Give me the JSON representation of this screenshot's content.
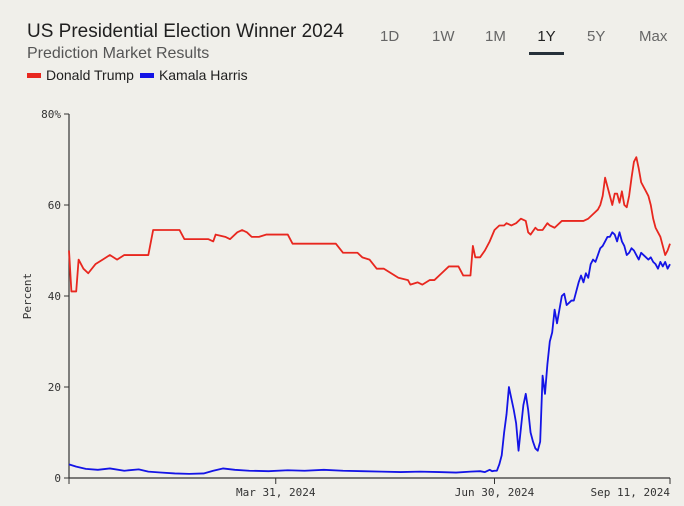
{
  "header": {
    "title": "US Presidential Election Winner 2024",
    "subtitle": "Prediction Market Results"
  },
  "range_tabs": [
    {
      "label": "1D",
      "active": false
    },
    {
      "label": "1W",
      "active": false
    },
    {
      "label": "1M",
      "active": false
    },
    {
      "label": "1Y",
      "active": true
    },
    {
      "label": "5Y",
      "active": false
    },
    {
      "label": "Max",
      "active": false
    }
  ],
  "colors": {
    "trump": "#e8271f",
    "harris": "#1414e6",
    "axis": "#333333",
    "active_tab": "#27313a"
  },
  "chart_data": {
    "type": "line",
    "title": "US Presidential Election Winner 2024",
    "subtitle": "Prediction Market Results",
    "ylabel": "Percent",
    "xlabel": "",
    "ylim": [
      0,
      80
    ],
    "y_ticks": [
      0,
      20,
      40,
      60
    ],
    "y_top_label": "80%",
    "x_ticks": [
      {
        "date": "2024-03-31",
        "label": "Mar 31, 2024"
      },
      {
        "date": "2024-06-30",
        "label": "Jun 30, 2024"
      },
      {
        "date": "2024-09-11",
        "label": "Sep 11, 2024"
      }
    ],
    "x_range": [
      "2024-01-05",
      "2024-09-11"
    ],
    "grid": false,
    "legend": "top-left",
    "series": [
      {
        "name": "Donald Trump",
        "color": "#e8271f",
        "points": [
          [
            "2024-01-05",
            50
          ],
          [
            "2024-01-06",
            41
          ],
          [
            "2024-01-08",
            41
          ],
          [
            "2024-01-09",
            48
          ],
          [
            "2024-01-11",
            46
          ],
          [
            "2024-01-13",
            45
          ],
          [
            "2024-01-16",
            47
          ],
          [
            "2024-01-19",
            48
          ],
          [
            "2024-01-22",
            49
          ],
          [
            "2024-01-25",
            48
          ],
          [
            "2024-01-28",
            49
          ],
          [
            "2024-02-03",
            49
          ],
          [
            "2024-02-07",
            49
          ],
          [
            "2024-02-09",
            54.5
          ],
          [
            "2024-02-17",
            54.5
          ],
          [
            "2024-02-20",
            54.5
          ],
          [
            "2024-02-22",
            52.5
          ],
          [
            "2024-02-28",
            52.5
          ],
          [
            "2024-03-03",
            52.5
          ],
          [
            "2024-03-05",
            52
          ],
          [
            "2024-03-06",
            53.5
          ],
          [
            "2024-03-10",
            53
          ],
          [
            "2024-03-12",
            52.5
          ],
          [
            "2024-03-15",
            54
          ],
          [
            "2024-03-17",
            54.5
          ],
          [
            "2024-03-19",
            54
          ],
          [
            "2024-03-21",
            53
          ],
          [
            "2024-03-24",
            53
          ],
          [
            "2024-03-27",
            53.5
          ],
          [
            "2024-04-01",
            53.5
          ],
          [
            "2024-04-05",
            53.5
          ],
          [
            "2024-04-07",
            51.5
          ],
          [
            "2024-04-15",
            51.5
          ],
          [
            "2024-04-25",
            51.5
          ],
          [
            "2024-04-28",
            49.5
          ],
          [
            "2024-05-04",
            49.5
          ],
          [
            "2024-05-06",
            48.5
          ],
          [
            "2024-05-09",
            48
          ],
          [
            "2024-05-12",
            46
          ],
          [
            "2024-05-15",
            46
          ],
          [
            "2024-05-18",
            45
          ],
          [
            "2024-05-21",
            44
          ],
          [
            "2024-05-25",
            43.5
          ],
          [
            "2024-05-26",
            42.5
          ],
          [
            "2024-05-29",
            43
          ],
          [
            "2024-05-31",
            42.5
          ],
          [
            "2024-06-03",
            43.5
          ],
          [
            "2024-06-05",
            43.5
          ],
          [
            "2024-06-08",
            45
          ],
          [
            "2024-06-11",
            46.5
          ],
          [
            "2024-06-15",
            46.5
          ],
          [
            "2024-06-17",
            44.5
          ],
          [
            "2024-06-20",
            44.5
          ],
          [
            "2024-06-21",
            51
          ],
          [
            "2024-06-22",
            48.5
          ],
          [
            "2024-06-24",
            48.5
          ],
          [
            "2024-06-26",
            50
          ],
          [
            "2024-06-28",
            52
          ],
          [
            "2024-06-30",
            54.5
          ],
          [
            "2024-07-02",
            55.5
          ],
          [
            "2024-07-04",
            55.5
          ],
          [
            "2024-07-05",
            56
          ],
          [
            "2024-07-07",
            55.5
          ],
          [
            "2024-07-09",
            56
          ],
          [
            "2024-07-11",
            57
          ],
          [
            "2024-07-13",
            56.5
          ],
          [
            "2024-07-14",
            54
          ],
          [
            "2024-07-15",
            53.5
          ],
          [
            "2024-07-17",
            55
          ],
          [
            "2024-07-18",
            54.5
          ],
          [
            "2024-07-20",
            54.5
          ],
          [
            "2024-07-22",
            56
          ],
          [
            "2024-07-23",
            55.5
          ],
          [
            "2024-07-25",
            55
          ],
          [
            "2024-07-28",
            56.5
          ],
          [
            "2024-08-02",
            56.5
          ],
          [
            "2024-08-06",
            56.5
          ],
          [
            "2024-08-08",
            57
          ],
          [
            "2024-08-10",
            58
          ],
          [
            "2024-08-12",
            59
          ],
          [
            "2024-08-13",
            60
          ],
          [
            "2024-08-14",
            62
          ],
          [
            "2024-08-15",
            66
          ],
          [
            "2024-08-16",
            64
          ],
          [
            "2024-08-17",
            62
          ],
          [
            "2024-08-18",
            60
          ],
          [
            "2024-08-19",
            62.5
          ],
          [
            "2024-08-20",
            62.5
          ],
          [
            "2024-08-21",
            60.5
          ],
          [
            "2024-08-22",
            63
          ],
          [
            "2024-08-23",
            60
          ],
          [
            "2024-08-24",
            59.5
          ],
          [
            "2024-08-25",
            62
          ],
          [
            "2024-08-26",
            66
          ],
          [
            "2024-08-27",
            69.5
          ],
          [
            "2024-08-28",
            70.5
          ],
          [
            "2024-08-29",
            68
          ],
          [
            "2024-08-30",
            65
          ],
          [
            "2024-08-31",
            64
          ],
          [
            "2024-09-01",
            63
          ],
          [
            "2024-09-02",
            62
          ],
          [
            "2024-09-03",
            60
          ],
          [
            "2024-09-04",
            57
          ],
          [
            "2024-09-05",
            55
          ],
          [
            "2024-09-06",
            54
          ],
          [
            "2024-09-07",
            53
          ],
          [
            "2024-09-08",
            51
          ],
          [
            "2024-09-09",
            49
          ],
          [
            "2024-09-10",
            50
          ],
          [
            "2024-09-11",
            51.5
          ]
        ]
      },
      {
        "name": "Kamala Harris",
        "color": "#1414e6",
        "points": [
          [
            "2024-01-05",
            3
          ],
          [
            "2024-01-08",
            2.5
          ],
          [
            "2024-01-12",
            2
          ],
          [
            "2024-01-17",
            1.8
          ],
          [
            "2024-01-22",
            2.1
          ],
          [
            "2024-01-28",
            1.6
          ],
          [
            "2024-02-03",
            1.9
          ],
          [
            "2024-02-07",
            1.4
          ],
          [
            "2024-02-12",
            1.2
          ],
          [
            "2024-02-18",
            1
          ],
          [
            "2024-02-24",
            0.9
          ],
          [
            "2024-03-01",
            1
          ],
          [
            "2024-03-05",
            1.6
          ],
          [
            "2024-03-09",
            2.1
          ],
          [
            "2024-03-14",
            1.8
          ],
          [
            "2024-03-20",
            1.6
          ],
          [
            "2024-03-28",
            1.5
          ],
          [
            "2024-04-05",
            1.7
          ],
          [
            "2024-04-12",
            1.6
          ],
          [
            "2024-04-20",
            1.8
          ],
          [
            "2024-04-28",
            1.6
          ],
          [
            "2024-05-06",
            1.5
          ],
          [
            "2024-05-14",
            1.4
          ],
          [
            "2024-05-22",
            1.3
          ],
          [
            "2024-05-30",
            1.4
          ],
          [
            "2024-06-07",
            1.3
          ],
          [
            "2024-06-14",
            1.2
          ],
          [
            "2024-06-20",
            1.4
          ],
          [
            "2024-06-24",
            1.5
          ],
          [
            "2024-06-26",
            1.3
          ],
          [
            "2024-06-28",
            1.8
          ],
          [
            "2024-06-29",
            1.5
          ],
          [
            "2024-06-30",
            1.6
          ],
          [
            "2024-07-01",
            1.6
          ],
          [
            "2024-07-02",
            3
          ],
          [
            "2024-07-03",
            5
          ],
          [
            "2024-07-04",
            10
          ],
          [
            "2024-07-05",
            14
          ],
          [
            "2024-07-06",
            20
          ],
          [
            "2024-07-07",
            17.5
          ],
          [
            "2024-07-08",
            15
          ],
          [
            "2024-07-09",
            12
          ],
          [
            "2024-07-10",
            6
          ],
          [
            "2024-07-11",
            11
          ],
          [
            "2024-07-12",
            16
          ],
          [
            "2024-07-13",
            18.5
          ],
          [
            "2024-07-14",
            15
          ],
          [
            "2024-07-15",
            10
          ],
          [
            "2024-07-16",
            8
          ],
          [
            "2024-07-17",
            6.5
          ],
          [
            "2024-07-18",
            6
          ],
          [
            "2024-07-19",
            8
          ],
          [
            "2024-07-20",
            22.5
          ],
          [
            "2024-07-21",
            18.5
          ],
          [
            "2024-07-22",
            25
          ],
          [
            "2024-07-23",
            30
          ],
          [
            "2024-07-24",
            32
          ],
          [
            "2024-07-25",
            37
          ],
          [
            "2024-07-26",
            34
          ],
          [
            "2024-07-27",
            37
          ],
          [
            "2024-07-28",
            40
          ],
          [
            "2024-07-29",
            40.5
          ],
          [
            "2024-07-30",
            38
          ],
          [
            "2024-08-01",
            39
          ],
          [
            "2024-08-02",
            39
          ],
          [
            "2024-08-03",
            41
          ],
          [
            "2024-08-04",
            43
          ],
          [
            "2024-08-05",
            44.5
          ],
          [
            "2024-08-06",
            43
          ],
          [
            "2024-08-07",
            45
          ],
          [
            "2024-08-08",
            44
          ],
          [
            "2024-08-09",
            47
          ],
          [
            "2024-08-10",
            48
          ],
          [
            "2024-08-11",
            47.5
          ],
          [
            "2024-08-12",
            49
          ],
          [
            "2024-08-13",
            50.5
          ],
          [
            "2024-08-14",
            51
          ],
          [
            "2024-08-15",
            52
          ],
          [
            "2024-08-16",
            53
          ],
          [
            "2024-08-17",
            53
          ],
          [
            "2024-08-18",
            54
          ],
          [
            "2024-08-19",
            53.5
          ],
          [
            "2024-08-20",
            52
          ],
          [
            "2024-08-21",
            54
          ],
          [
            "2024-08-22",
            52
          ],
          [
            "2024-08-23",
            51
          ],
          [
            "2024-08-24",
            49
          ],
          [
            "2024-08-25",
            49.5
          ],
          [
            "2024-08-26",
            50.5
          ],
          [
            "2024-08-27",
            50
          ],
          [
            "2024-08-28",
            49
          ],
          [
            "2024-08-29",
            48
          ],
          [
            "2024-08-30",
            49.5
          ],
          [
            "2024-08-31",
            49
          ],
          [
            "2024-09-01",
            48.5
          ],
          [
            "2024-09-02",
            48
          ],
          [
            "2024-09-03",
            48.5
          ],
          [
            "2024-09-04",
            47.5
          ],
          [
            "2024-09-05",
            47
          ],
          [
            "2024-09-06",
            46
          ],
          [
            "2024-09-07",
            47.5
          ],
          [
            "2024-09-08",
            46.5
          ],
          [
            "2024-09-09",
            47.5
          ],
          [
            "2024-09-10",
            46
          ],
          [
            "2024-09-11",
            47
          ]
        ]
      }
    ]
  }
}
